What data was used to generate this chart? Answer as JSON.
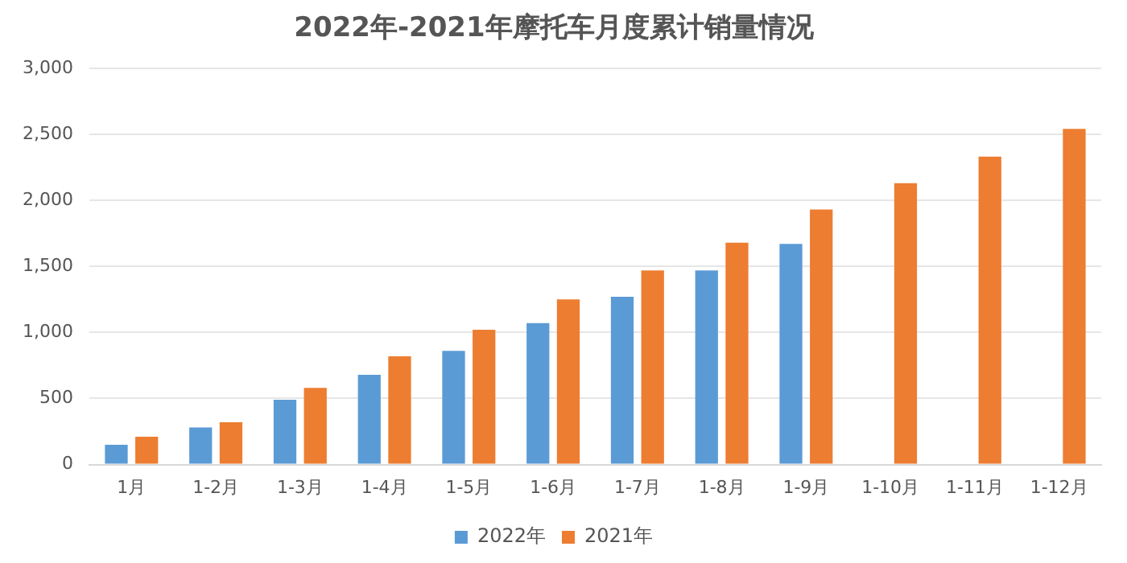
{
  "chart_data": {
    "type": "bar",
    "title": "2022年-2021年摩托车月度累计销量情况",
    "categories": [
      "1月",
      "1-2月",
      "1-3月",
      "1-4月",
      "1-5月",
      "1-6月",
      "1-7月",
      "1-8月",
      "1-9月",
      "1-10月",
      "1-11月",
      "1-12月"
    ],
    "series": [
      {
        "name": "2022年",
        "color": "#5b9bd5",
        "values": [
          150,
          280,
          490,
          680,
          860,
          1070,
          1270,
          1470,
          1670,
          null,
          null,
          null
        ]
      },
      {
        "name": "2021年",
        "color": "#ed7d31",
        "values": [
          210,
          320,
          580,
          820,
          1020,
          1250,
          1470,
          1680,
          1930,
          2130,
          2330,
          2540
        ]
      }
    ],
    "ylim": [
      0,
      3000
    ],
    "yticks": [
      0,
      500,
      {
        "value": 1000,
        "label": "1,000"
      },
      {
        "value": 1500,
        "label": "1,500"
      },
      {
        "value": 2000,
        "label": "2,000"
      },
      {
        "value": 2500,
        "label": "2,500"
      },
      {
        "value": 3000,
        "label": "3,000"
      }
    ],
    "grid": "y",
    "legend": "bottom"
  }
}
